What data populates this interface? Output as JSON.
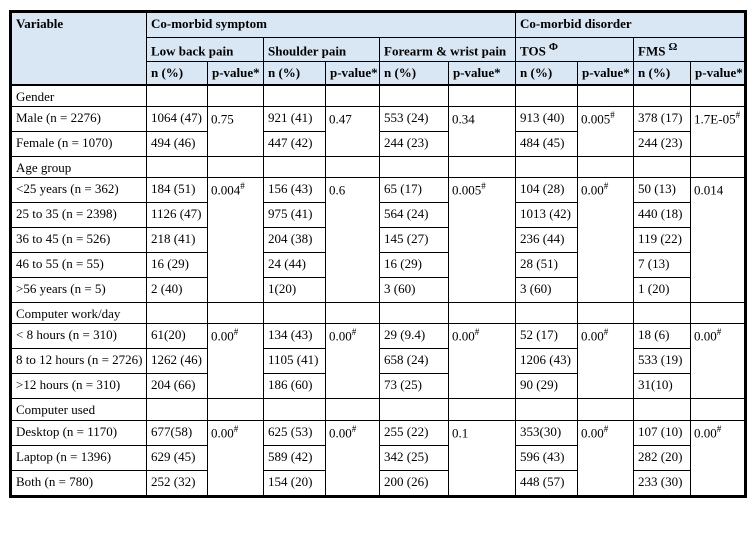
{
  "colors": {
    "header_bg": "#d9e6f4",
    "border": "#000000",
    "body_bg": "#ffffff"
  },
  "table": {
    "header": {
      "variable_label": "Variable",
      "groups": [
        {
          "label": "Co-morbid symptom",
          "columns": 6
        },
        {
          "label": "Co-morbid disorder",
          "columns": 4
        }
      ],
      "subheaders": [
        {
          "label": "Low back pain",
          "sup": ""
        },
        {
          "label": "Shoulder pain",
          "sup": ""
        },
        {
          "label": "Forearm & wrist pain",
          "sup": ""
        },
        {
          "label": "TOS",
          "sup": "Φ"
        },
        {
          "label": "FMS",
          "sup": "Ω"
        }
      ],
      "measures": {
        "n_label": "n (%)",
        "p_label": "p-value*"
      }
    },
    "sections": [
      {
        "title": "Gender",
        "rows": [
          {
            "label": "Male (n = 2276)",
            "values": [
              "1064 (47)",
              "921 (41)",
              "553 (24)",
              "913 (40)",
              "378 (17)"
            ]
          },
          {
            "label": "Female (n = 1070)",
            "values": [
              "494 (46)",
              "447 (42)",
              "244 (23)",
              "484 (45)",
              "244 (23)"
            ]
          }
        ],
        "p_values": [
          {
            "value": "0.75",
            "marker": ""
          },
          {
            "value": "0.47",
            "marker": ""
          },
          {
            "value": "0.34",
            "marker": ""
          },
          {
            "value": "0.005",
            "marker": "#"
          },
          {
            "value": "1.7E-05",
            "marker": "#"
          }
        ]
      },
      {
        "title": "Age group",
        "rows": [
          {
            "label": "<25 years (n = 362)",
            "values": [
              "184 (51)",
              "156 (43)",
              "65 (17)",
              "104 (28)",
              "50 (13)"
            ]
          },
          {
            "label": "25 to 35 (n = 2398)",
            "values": [
              "1126 (47)",
              "975 (41)",
              "564 (24)",
              "1013 (42)",
              "440 (18)"
            ]
          },
          {
            "label": "36 to 45 (n = 526)",
            "values": [
              "218 (41)",
              "204 (38)",
              "145 (27)",
              "236 (44)",
              "119 (22)"
            ]
          },
          {
            "label": "46 to 55 (n = 55)",
            "values": [
              "16 (29)",
              "24 (44)",
              "16 (29)",
              "28 (51)",
              "7 (13)"
            ]
          },
          {
            "label": ">56 years (n = 5)",
            "values": [
              "2 (40)",
              "1(20)",
              "3 (60)",
              "3 (60)",
              "1 (20)"
            ]
          }
        ],
        "p_values": [
          {
            "value": "0.004",
            "marker": "#"
          },
          {
            "value": "0.6",
            "marker": ""
          },
          {
            "value": "0.005",
            "marker": "#"
          },
          {
            "value": "0.00",
            "marker": "#"
          },
          {
            "value": "0.014",
            "marker": ""
          }
        ]
      },
      {
        "title": "Computer work/day",
        "rows": [
          {
            "label": "< 8 hours (n = 310)",
            "values": [
              "61(20)",
              "134 (43)",
              "29 (9.4)",
              "52 (17)",
              "18 (6)"
            ]
          },
          {
            "label": "8 to 12 hours (n = 2726)",
            "values": [
              "1262 (46)",
              "1105 (41)",
              "658 (24)",
              "1206 (43)",
              "533 (19)"
            ]
          },
          {
            "label": ">12 hours (n = 310)",
            "values": [
              "204 (66)",
              "186 (60)",
              "73 (25)",
              "90 (29)",
              "31(10)"
            ]
          }
        ],
        "p_values": [
          {
            "value": "0.00",
            "marker": "#"
          },
          {
            "value": "0.00",
            "marker": "#"
          },
          {
            "value": "0.00",
            "marker": "#"
          },
          {
            "value": "0.00",
            "marker": "#"
          },
          {
            "value": "0.00",
            "marker": "#"
          }
        ]
      },
      {
        "title": "Computer used",
        "rows": [
          {
            "label": "Desktop (n = 1170)",
            "values": [
              "677(58)",
              "625 (53)",
              "255 (22)",
              "353(30)",
              "107 (10)"
            ]
          },
          {
            "label": "Laptop (n = 1396)",
            "values": [
              "629 (45)",
              "589 (42)",
              "342 (25)",
              "596 (43)",
              "282 (20)"
            ]
          },
          {
            "label": "Both (n = 780)",
            "values": [
              "252 (32)",
              "154 (20)",
              "200 (26)",
              "448 (57)",
              "233 (30)"
            ]
          }
        ],
        "p_values": [
          {
            "value": "0.00",
            "marker": "#"
          },
          {
            "value": "0.00",
            "marker": "#"
          },
          {
            "value": "0.1",
            "marker": ""
          },
          {
            "value": "0.00",
            "marker": "#"
          },
          {
            "value": "0.00",
            "marker": "#"
          }
        ]
      }
    ]
  }
}
